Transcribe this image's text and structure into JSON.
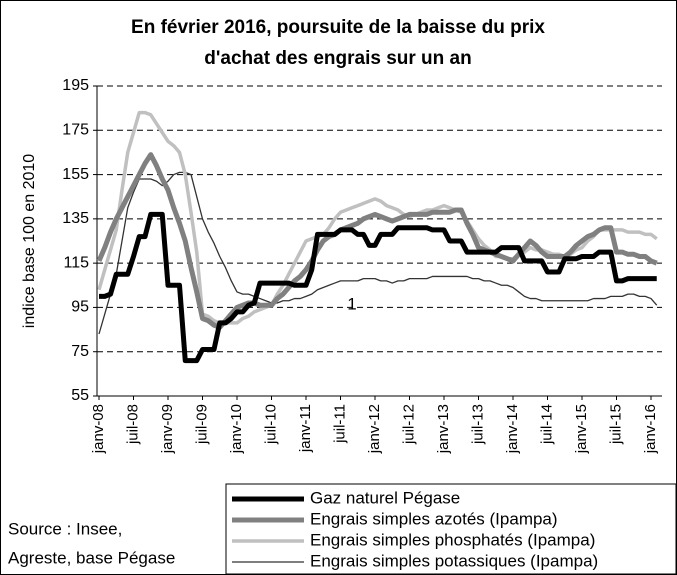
{
  "chart_data": {
    "type": "line",
    "title": [
      "En février 2016, poursuite de la baisse du prix",
      "d'achat des engrais sur un an"
    ],
    "y_label": "indice base 100 en 2010",
    "source": [
      "Source : Insee,",
      "Agreste, base Pégase"
    ],
    "ylim": [
      55,
      195
    ],
    "yticks": [
      55,
      75,
      95,
      115,
      135,
      155,
      175,
      195
    ],
    "grid": true,
    "legend": "bottom-right",
    "annotations": [
      {
        "text": "1",
        "x": 44,
        "y": 96
      }
    ],
    "categories": [
      "janv-08",
      null,
      null,
      null,
      null,
      null,
      "juil-08",
      null,
      null,
      null,
      null,
      null,
      "janv-09",
      null,
      null,
      null,
      null,
      null,
      "juil-09",
      null,
      null,
      null,
      null,
      null,
      "janv-10",
      null,
      null,
      null,
      null,
      null,
      "juil-10",
      null,
      null,
      null,
      null,
      null,
      "janv-11",
      null,
      null,
      null,
      null,
      null,
      "juil-11",
      null,
      null,
      null,
      null,
      null,
      "janv-12",
      null,
      null,
      null,
      null,
      null,
      "juil-12",
      null,
      null,
      null,
      null,
      null,
      "janv-13",
      null,
      null,
      null,
      null,
      null,
      "juil-13",
      null,
      null,
      null,
      null,
      null,
      "janv-14",
      null,
      null,
      null,
      null,
      null,
      "juil-14",
      null,
      null,
      null,
      null,
      null,
      "janv-15",
      null,
      null,
      null,
      null,
      null,
      "juil-15",
      null,
      null,
      null,
      null,
      null,
      "janv-16",
      null
    ],
    "series": [
      {
        "name": "Gaz naturel Pégase",
        "color": "#000000",
        "width": 5,
        "values": [
          100,
          100,
          101,
          110,
          110,
          110,
          118,
          127,
          127,
          137,
          137,
          137,
          105,
          105,
          105,
          71,
          71,
          71,
          76,
          76,
          76,
          88,
          88,
          90,
          93,
          93,
          96,
          97,
          106,
          106,
          106,
          106,
          106,
          106,
          105,
          105,
          105,
          112,
          128,
          128,
          128,
          128,
          130,
          130,
          130,
          128,
          128,
          123,
          123,
          128,
          128,
          128,
          131,
          131,
          131,
          131,
          131,
          131,
          130,
          130,
          130,
          125,
          125,
          125,
          120,
          120,
          120,
          120,
          120,
          120,
          122,
          122,
          122,
          122,
          116,
          116,
          116,
          116,
          111,
          111,
          111,
          117,
          117,
          117,
          118,
          118,
          118,
          120,
          120,
          120,
          107,
          107,
          108,
          108,
          108,
          108,
          108,
          108
        ]
      },
      {
        "name": "Engrais simples azotés (Ipampa)",
        "color": "#808080",
        "width": 5,
        "values": [
          116,
          122,
          129,
          135,
          140,
          145,
          150,
          155,
          160,
          164,
          159,
          153,
          148,
          140,
          133,
          125,
          113,
          102,
          90,
          89,
          87,
          86,
          89,
          92,
          95,
          96,
          97,
          97,
          96,
          96,
          96,
          99,
          101,
          104,
          107,
          109,
          112,
          116,
          121,
          125,
          127,
          128,
          130,
          131,
          132,
          133,
          135,
          136,
          137,
          136,
          135,
          134,
          135,
          136,
          137,
          137,
          137,
          137,
          138,
          138,
          138,
          138,
          139,
          139,
          133,
          128,
          122,
          121,
          120,
          119,
          118,
          117,
          116,
          119,
          122,
          125,
          123,
          120,
          118,
          118,
          118,
          118,
          120,
          123,
          125,
          127,
          128,
          130,
          131,
          131,
          120,
          120,
          119,
          119,
          118,
          118,
          116,
          115
        ]
      },
      {
        "name": "Engrais simples phosphatés (Ipampa)",
        "color": "#c0c0c0",
        "width": 3.5,
        "values": [
          103,
          112,
          121,
          130,
          148,
          165,
          174,
          183,
          183,
          182,
          178,
          174,
          170,
          168,
          165,
          155,
          138,
          120,
          92,
          91,
          89,
          88,
          88,
          88,
          88,
          90,
          91,
          93,
          94,
          95,
          96,
          101,
          105,
          110,
          115,
          120,
          125,
          126,
          127,
          128,
          131,
          135,
          138,
          139,
          140,
          141,
          142,
          143,
          144,
          143,
          141,
          140,
          139,
          137,
          136,
          137,
          138,
          139,
          139,
          140,
          141,
          140,
          139,
          138,
          134,
          130,
          126,
          123,
          121,
          118,
          118,
          117,
          117,
          119,
          120,
          122,
          121,
          121,
          120,
          119,
          119,
          118,
          119,
          121,
          122,
          125,
          127,
          130,
          130,
          130,
          130,
          130,
          129,
          129,
          129,
          128,
          128,
          126
        ]
      },
      {
        "name": "Engrais simples potassiques (Ipampa)",
        "color": "#333333",
        "width": 1.3,
        "values": [
          83,
          92,
          101,
          110,
          125,
          140,
          147,
          153,
          153,
          153,
          152,
          150,
          152,
          155,
          156,
          156,
          155,
          145,
          135,
          129,
          124,
          118,
          113,
          107,
          102,
          101,
          101,
          100,
          99,
          98,
          97,
          97,
          98,
          98,
          99,
          99,
          100,
          101,
          103,
          104,
          105,
          106,
          107,
          107,
          107,
          107,
          108,
          108,
          108,
          107,
          107,
          106,
          107,
          107,
          108,
          108,
          108,
          108,
          109,
          109,
          109,
          109,
          109,
          109,
          109,
          108,
          108,
          107,
          107,
          106,
          105,
          105,
          104,
          102,
          100,
          99,
          99,
          98,
          98,
          98,
          98,
          98,
          98,
          98,
          98,
          98,
          99,
          99,
          99,
          100,
          100,
          100,
          101,
          101,
          100,
          100,
          99,
          96
        ]
      }
    ]
  }
}
